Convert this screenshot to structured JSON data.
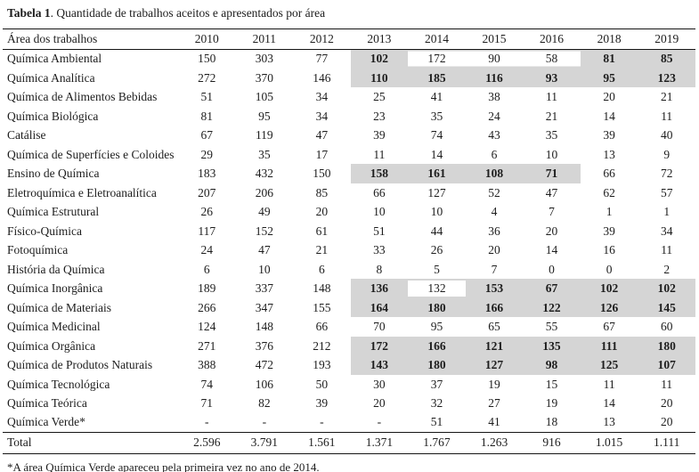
{
  "title": {
    "bold": "Tabela 1",
    "rest": ". Quantidade de trabalhos aceitos e apresentados por área"
  },
  "table": {
    "area_header": "Área dos trabalhos",
    "years": [
      "2010",
      "2011",
      "2012",
      "2013",
      "2014",
      "2015",
      "2016",
      "2018",
      "2019"
    ],
    "rows": [
      {
        "area": "Química Ambiental",
        "values": [
          "150",
          "303",
          "77",
          "102",
          "172",
          "90",
          "58",
          "81",
          "85"
        ],
        "shaded": [
          3,
          7,
          8
        ],
        "inset": [
          4,
          5,
          6
        ]
      },
      {
        "area": "Química Analítica",
        "values": [
          "272",
          "370",
          "146",
          "110",
          "185",
          "116",
          "93",
          "95",
          "123"
        ],
        "shaded": [
          3,
          4,
          5,
          6,
          7,
          8
        ],
        "inset": []
      },
      {
        "area": "Química de Alimentos Bebidas",
        "values": [
          "51",
          "105",
          "34",
          "25",
          "41",
          "38",
          "11",
          "20",
          "21"
        ],
        "shaded": [],
        "inset": []
      },
      {
        "area": "Química Biológica",
        "values": [
          "81",
          "95",
          "34",
          "23",
          "35",
          "24",
          "21",
          "14",
          "11"
        ],
        "shaded": [],
        "inset": []
      },
      {
        "area": "Catálise",
        "values": [
          "67",
          "119",
          "47",
          "39",
          "74",
          "43",
          "35",
          "39",
          "40"
        ],
        "shaded": [],
        "inset": []
      },
      {
        "area": "Química de Superfícies e Coloides",
        "values": [
          "29",
          "35",
          "17",
          "11",
          "14",
          "6",
          "10",
          "13",
          "9"
        ],
        "shaded": [],
        "inset": []
      },
      {
        "area": "Ensino de Química",
        "values": [
          "183",
          "432",
          "150",
          "158",
          "161",
          "108",
          "71",
          "66",
          "72"
        ],
        "shaded": [
          3,
          4,
          5,
          6
        ],
        "inset": []
      },
      {
        "area": "Eletroquímica e Eletroanalítica",
        "values": [
          "207",
          "206",
          "85",
          "66",
          "127",
          "52",
          "47",
          "62",
          "57"
        ],
        "shaded": [],
        "inset": []
      },
      {
        "area": "Química Estrutural",
        "values": [
          "26",
          "49",
          "20",
          "10",
          "10",
          "4",
          "7",
          "1",
          "1"
        ],
        "shaded": [],
        "inset": []
      },
      {
        "area": "Físico-Química",
        "values": [
          "117",
          "152",
          "61",
          "51",
          "44",
          "36",
          "20",
          "39",
          "34"
        ],
        "shaded": [],
        "inset": []
      },
      {
        "area": "Fotoquímica",
        "values": [
          "24",
          "47",
          "21",
          "33",
          "26",
          "20",
          "14",
          "16",
          "11"
        ],
        "shaded": [],
        "inset": []
      },
      {
        "area": "História da Química",
        "values": [
          "6",
          "10",
          "6",
          "8",
          "5",
          "7",
          "0",
          "0",
          "2"
        ],
        "shaded": [],
        "inset": []
      },
      {
        "area": "Química Inorgânica",
        "values": [
          "189",
          "337",
          "148",
          "136",
          "132",
          "153",
          "67",
          "102",
          "102"
        ],
        "shaded": [
          3,
          5,
          6,
          7,
          8
        ],
        "inset": [
          4
        ]
      },
      {
        "area": "Química de Materiais",
        "values": [
          "266",
          "347",
          "155",
          "164",
          "180",
          "166",
          "122",
          "126",
          "145"
        ],
        "shaded": [
          3,
          4,
          5,
          6,
          7,
          8
        ],
        "inset": []
      },
      {
        "area": "Química Medicinal",
        "values": [
          "124",
          "148",
          "66",
          "70",
          "95",
          "65",
          "55",
          "67",
          "60"
        ],
        "shaded": [],
        "inset": []
      },
      {
        "area": "Química Orgânica",
        "values": [
          "271",
          "376",
          "212",
          "172",
          "166",
          "121",
          "135",
          "111",
          "180"
        ],
        "shaded": [
          3,
          4,
          5,
          6,
          7,
          8
        ],
        "inset": []
      },
      {
        "area": "Química de Produtos Naturais",
        "values": [
          "388",
          "472",
          "193",
          "143",
          "180",
          "127",
          "98",
          "125",
          "107"
        ],
        "shaded": [
          3,
          4,
          5,
          6,
          7,
          8
        ],
        "inset": []
      },
      {
        "area": "Química Tecnológica",
        "values": [
          "74",
          "106",
          "50",
          "30",
          "37",
          "19",
          "15",
          "11",
          "11"
        ],
        "shaded": [],
        "inset": []
      },
      {
        "area": "Química Teórica",
        "values": [
          "71",
          "82",
          "39",
          "20",
          "32",
          "27",
          "19",
          "14",
          "20"
        ],
        "shaded": [],
        "inset": []
      },
      {
        "area": "Química Verde*",
        "values": [
          "-",
          "-",
          "-",
          "-",
          "51",
          "41",
          "18",
          "13",
          "20"
        ],
        "shaded": [],
        "inset": []
      }
    ],
    "total": {
      "area": "Total",
      "values": [
        "2.596",
        "3.791",
        "1.561",
        "1.371",
        "1.767",
        "1.263",
        "916",
        "1.015",
        "1.111"
      ]
    }
  },
  "footnote": "*A área Química Verde apareceu pela primeira vez no ano de 2014.",
  "colors": {
    "shade": "#d5d5d5",
    "text": "#1d1d1d",
    "rule": "#151515"
  }
}
